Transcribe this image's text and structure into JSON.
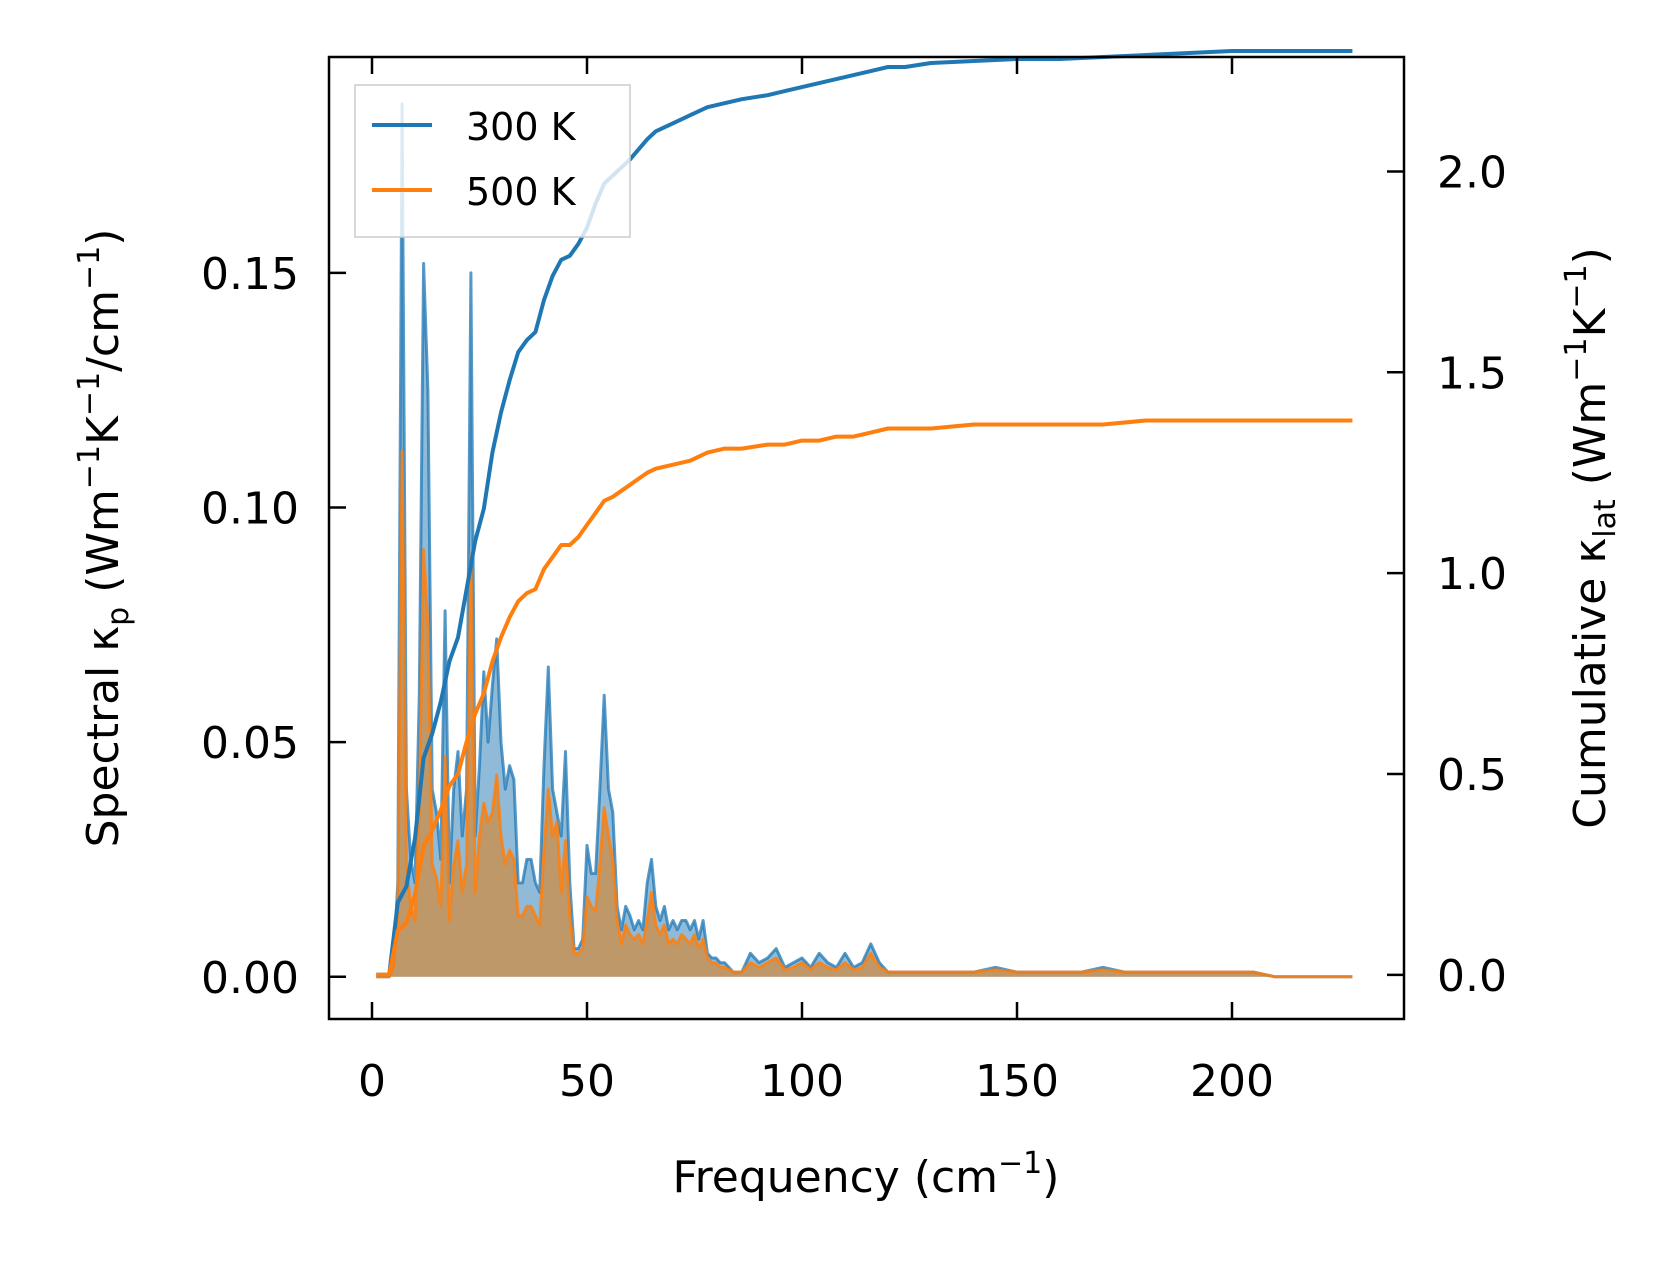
{
  "chart_data": {
    "type": "line",
    "title": "",
    "xlabel": "Frequency (cm",
    "xlabel_sup": "−1",
    "xlabel_end": ")",
    "ylabel_left": {
      "p1": "Spectral κ",
      "sub": "p",
      "p2": " (Wm",
      "sup1": "−1",
      "p3": "K",
      "sup2": "−1",
      "p4": "/cm",
      "sup3": "−1",
      "p5": ")"
    },
    "ylabel_right": {
      "p1": "Cumulative κ",
      "sub": "lat",
      "p2": " (Wm",
      "sup1": "−1",
      "p3": "K",
      "sup2": "−1",
      "p4": ")"
    },
    "xlim": [
      -10,
      240
    ],
    "ylim_left": [
      -0.009,
      0.196
    ],
    "ylim_right": [
      -0.11,
      2.285
    ],
    "xticks": [
      0,
      50,
      100,
      150,
      200
    ],
    "xtick_labels": [
      "0",
      "50",
      "100",
      "150",
      "200"
    ],
    "yticks_left": [
      0.0,
      0.05,
      0.1,
      0.15
    ],
    "ytick_labels_left": [
      "0.00",
      "0.05",
      "0.10",
      "0.15"
    ],
    "yticks_right": [
      0.0,
      0.5,
      1.0,
      1.5,
      2.0
    ],
    "ytick_labels_right": [
      "0.0",
      "0.5",
      "1.0",
      "1.5",
      "2.0"
    ],
    "legend_position": "top-left",
    "colors": {
      "300 K": "#1f77b4",
      "500 K": "#ff7f0e"
    },
    "spectral_x": [
      1,
      2,
      3,
      4,
      5,
      6,
      7,
      8,
      9,
      10,
      11,
      12,
      13,
      14,
      15,
      16,
      17,
      18,
      19,
      20,
      21,
      22,
      23,
      24,
      25,
      26,
      27,
      28,
      29,
      30,
      31,
      32,
      33,
      34,
      35,
      36,
      37,
      38,
      39,
      40,
      41,
      42,
      43,
      44,
      45,
      46,
      47,
      48,
      49,
      50,
      51,
      52,
      53,
      54,
      55,
      56,
      57,
      58,
      59,
      60,
      61,
      62,
      63,
      64,
      65,
      66,
      67,
      68,
      69,
      70,
      71,
      72,
      73,
      74,
      75,
      76,
      77,
      78,
      79,
      80,
      81,
      82,
      83,
      84,
      85,
      86,
      88,
      90,
      92,
      94,
      96,
      98,
      100,
      102,
      104,
      106,
      108,
      110,
      112,
      114,
      116,
      118,
      120,
      122,
      124,
      126,
      128,
      130,
      135,
      140,
      145,
      150,
      155,
      160,
      165,
      170,
      175,
      180,
      185,
      190,
      195,
      200,
      205,
      210,
      215,
      220,
      228
    ],
    "series": [
      {
        "name": "300 K",
        "spectral": [
          0.0,
          0.0,
          0.0,
          0.0,
          0.003,
          0.02,
          0.186,
          0.04,
          0.025,
          0.02,
          0.06,
          0.152,
          0.125,
          0.04,
          0.035,
          0.025,
          0.078,
          0.02,
          0.04,
          0.048,
          0.03,
          0.04,
          0.15,
          0.03,
          0.045,
          0.065,
          0.05,
          0.062,
          0.072,
          0.05,
          0.04,
          0.045,
          0.042,
          0.02,
          0.02,
          0.025,
          0.025,
          0.02,
          0.018,
          0.045,
          0.066,
          0.04,
          0.035,
          0.03,
          0.048,
          0.02,
          0.006,
          0.006,
          0.008,
          0.028,
          0.022,
          0.022,
          0.04,
          0.06,
          0.04,
          0.035,
          0.015,
          0.01,
          0.015,
          0.013,
          0.01,
          0.012,
          0.01,
          0.02,
          0.025,
          0.015,
          0.012,
          0.015,
          0.01,
          0.012,
          0.01,
          0.012,
          0.012,
          0.01,
          0.012,
          0.008,
          0.012,
          0.005,
          0.004,
          0.004,
          0.003,
          0.003,
          0.002,
          0.001,
          0.001,
          0.001,
          0.005,
          0.003,
          0.004,
          0.006,
          0.002,
          0.003,
          0.004,
          0.002,
          0.005,
          0.003,
          0.002,
          0.005,
          0.002,
          0.003,
          0.007,
          0.003,
          0.001,
          0.001,
          0.001,
          0.001,
          0.001,
          0.001,
          0.001,
          0.001,
          0.002,
          0.001,
          0.001,
          0.001,
          0.001,
          0.002,
          0.001,
          0.001,
          0.001,
          0.001,
          0.001,
          0.001,
          0.001,
          0.0,
          0.0,
          0.0,
          0.0
        ],
        "cumulative_x": [
          1,
          4,
          6,
          8,
          10,
          12,
          14,
          16,
          18,
          20,
          22,
          24,
          26,
          28,
          30,
          32,
          34,
          36,
          38,
          40,
          42,
          44,
          46,
          48,
          50,
          52,
          54,
          56,
          60,
          64,
          66,
          70,
          74,
          78,
          82,
          86,
          92,
          96,
          100,
          104,
          108,
          112,
          116,
          120,
          124,
          130,
          140,
          150,
          160,
          170,
          180,
          190,
          200,
          205,
          210,
          220,
          228
        ],
        "cumulative": [
          0.0,
          0.0,
          0.18,
          0.22,
          0.34,
          0.54,
          0.6,
          0.68,
          0.78,
          0.84,
          0.96,
          1.08,
          1.16,
          1.3,
          1.4,
          1.48,
          1.55,
          1.58,
          1.6,
          1.68,
          1.74,
          1.78,
          1.79,
          1.82,
          1.86,
          1.92,
          1.97,
          1.99,
          2.03,
          2.08,
          2.1,
          2.12,
          2.14,
          2.16,
          2.17,
          2.18,
          2.19,
          2.2,
          2.21,
          2.22,
          2.23,
          2.24,
          2.25,
          2.26,
          2.26,
          2.27,
          2.275,
          2.28,
          2.28,
          2.285,
          2.29,
          2.295,
          2.3,
          2.3,
          2.3,
          2.3,
          2.3
        ]
      },
      {
        "name": "500 K",
        "spectral": [
          0.0,
          0.0,
          0.0,
          0.0,
          0.002,
          0.012,
          0.112,
          0.024,
          0.015,
          0.012,
          0.036,
          0.091,
          0.075,
          0.024,
          0.021,
          0.015,
          0.047,
          0.012,
          0.024,
          0.029,
          0.018,
          0.024,
          0.09,
          0.018,
          0.03,
          0.037,
          0.033,
          0.035,
          0.043,
          0.03,
          0.024,
          0.027,
          0.025,
          0.013,
          0.013,
          0.015,
          0.015,
          0.013,
          0.011,
          0.027,
          0.04,
          0.03,
          0.033,
          0.018,
          0.029,
          0.013,
          0.005,
          0.005,
          0.006,
          0.017,
          0.015,
          0.014,
          0.024,
          0.036,
          0.03,
          0.025,
          0.012,
          0.007,
          0.011,
          0.009,
          0.008,
          0.009,
          0.007,
          0.012,
          0.018,
          0.011,
          0.009,
          0.011,
          0.007,
          0.008,
          0.007,
          0.009,
          0.008,
          0.007,
          0.009,
          0.006,
          0.008,
          0.004,
          0.003,
          0.003,
          0.002,
          0.002,
          0.0015,
          0.001,
          0.001,
          0.001,
          0.003,
          0.002,
          0.003,
          0.004,
          0.0015,
          0.002,
          0.003,
          0.0015,
          0.003,
          0.002,
          0.0015,
          0.003,
          0.0015,
          0.002,
          0.005,
          0.002,
          0.001,
          0.001,
          0.001,
          0.001,
          0.001,
          0.001,
          0.001,
          0.001,
          0.0015,
          0.001,
          0.001,
          0.001,
          0.001,
          0.0015,
          0.001,
          0.001,
          0.001,
          0.001,
          0.001,
          0.001,
          0.001,
          0.0,
          0.0,
          0.0,
          0.0
        ],
        "cumulative_x": [
          1,
          4,
          6,
          8,
          10,
          12,
          14,
          16,
          18,
          20,
          22,
          24,
          26,
          28,
          30,
          32,
          34,
          36,
          38,
          40,
          42,
          44,
          46,
          48,
          50,
          52,
          54,
          56,
          60,
          64,
          66,
          70,
          74,
          78,
          82,
          86,
          92,
          96,
          100,
          104,
          108,
          112,
          116,
          120,
          124,
          130,
          140,
          150,
          160,
          170,
          180,
          190,
          200,
          205,
          210,
          220,
          228
        ],
        "cumulative": [
          0.0,
          0.0,
          0.11,
          0.13,
          0.2,
          0.32,
          0.36,
          0.41,
          0.47,
          0.5,
          0.58,
          0.65,
          0.7,
          0.78,
          0.84,
          0.89,
          0.93,
          0.95,
          0.96,
          1.01,
          1.04,
          1.07,
          1.07,
          1.09,
          1.12,
          1.15,
          1.18,
          1.19,
          1.22,
          1.25,
          1.26,
          1.27,
          1.28,
          1.3,
          1.31,
          1.31,
          1.32,
          1.32,
          1.33,
          1.33,
          1.34,
          1.34,
          1.35,
          1.36,
          1.36,
          1.36,
          1.37,
          1.37,
          1.37,
          1.37,
          1.38,
          1.38,
          1.38,
          1.38,
          1.38,
          1.38,
          1.38
        ]
      }
    ]
  }
}
